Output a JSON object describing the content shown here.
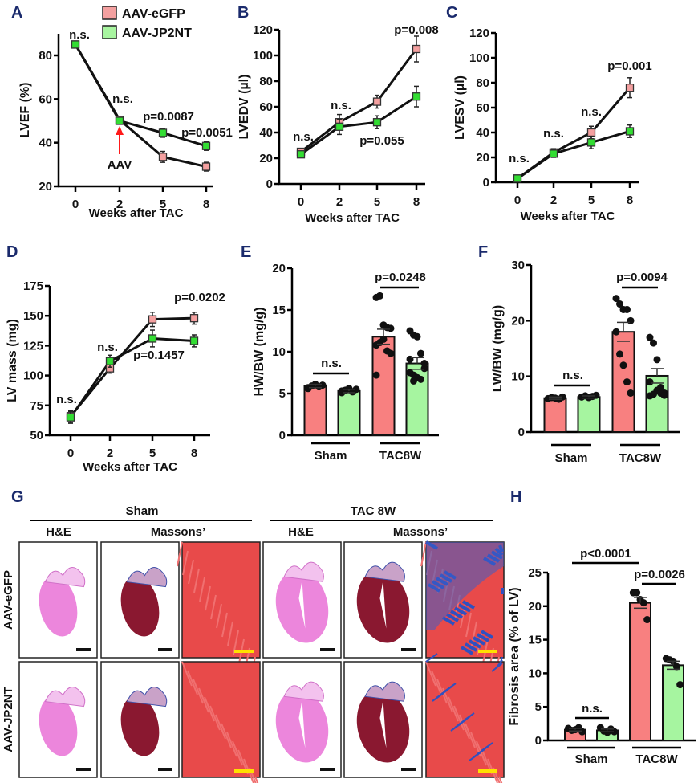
{
  "legend": {
    "items": [
      {
        "label": "AAV-eGFP",
        "color": "#f4a0a0"
      },
      {
        "label": "AAV-JP2NT",
        "color": "#a8f5a0"
      }
    ]
  },
  "colors": {
    "egfp_marker": "#f4a0a0",
    "jp2nt_marker": "#33dd33",
    "egfp_bar": "#f88080",
    "jp2nt_bar": "#a6f5a0",
    "panel_letter": "#1a2a6c",
    "arrow": "#ff1a1a"
  },
  "panel_letters": [
    "A",
    "B",
    "C",
    "D",
    "E",
    "F",
    "G",
    "H"
  ],
  "chart_data": [
    {
      "id": "A",
      "type": "line",
      "ylabel": "LVEF (%)",
      "xlabel": "Weeks after TAC",
      "categories": [
        "0",
        "2",
        "5",
        "8"
      ],
      "ylim": [
        20,
        90
      ],
      "yticks": [
        20,
        40,
        60,
        80
      ],
      "series": [
        {
          "name": "AAV-eGFP",
          "values": [
            85,
            50.5,
            33.5,
            29
          ],
          "sem": [
            1,
            1.5,
            2.5,
            2
          ]
        },
        {
          "name": "AAV-JP2NT",
          "values": [
            85,
            50,
            44.5,
            38.5
          ],
          "sem": [
            1,
            1.5,
            2,
            2
          ]
        }
      ],
      "annotations": [
        "n.s.",
        "n.s.",
        "p=0.0087",
        "p=0.0051"
      ],
      "arrow_label": "AAV"
    },
    {
      "id": "B",
      "type": "line",
      "ylabel": "LVEDV (µl)",
      "xlabel": "Weeks after TAC",
      "categories": [
        "0",
        "2",
        "5",
        "8"
      ],
      "ylim": [
        0,
        120
      ],
      "yticks": [
        0,
        20,
        40,
        60,
        80,
        100,
        120
      ],
      "series": [
        {
          "name": "AAV-eGFP",
          "values": [
            25,
            48,
            64,
            105
          ],
          "sem": [
            2,
            6,
            5,
            10
          ]
        },
        {
          "name": "AAV-JP2NT",
          "values": [
            23,
            44.5,
            48,
            68
          ],
          "sem": [
            2,
            6,
            5,
            8
          ]
        }
      ],
      "annotations": [
        "n.s.",
        "n.s.",
        "p=0.055",
        "p=0.008"
      ]
    },
    {
      "id": "C",
      "type": "line",
      "ylabel": "LVESV (µl)",
      "xlabel": "Weeks after TAC",
      "categories": [
        "0",
        "2",
        "5",
        "8"
      ],
      "ylim": [
        0,
        120
      ],
      "yticks": [
        0,
        20,
        40,
        60,
        80,
        100,
        120
      ],
      "series": [
        {
          "name": "AAV-eGFP",
          "values": [
            3,
            24,
            40,
            76
          ],
          "sem": [
            1,
            3,
            5,
            8
          ]
        },
        {
          "name": "AAV-JP2NT",
          "values": [
            3,
            23,
            32,
            41
          ],
          "sem": [
            1,
            3,
            5,
            5
          ]
        }
      ],
      "annotations": [
        "n.s.",
        "n.s.",
        "n.s.",
        "p=0.001"
      ]
    },
    {
      "id": "D",
      "type": "line",
      "ylabel": "LV mass (mg)",
      "xlabel": "Weeks after TAC",
      "categories": [
        "0",
        "2",
        "5",
        "8"
      ],
      "ylim": [
        50,
        175
      ],
      "yticks": [
        50,
        75,
        100,
        125,
        150,
        175
      ],
      "series": [
        {
          "name": "AAV-eGFP",
          "values": [
            66,
            106,
            147,
            148
          ],
          "sem": [
            5,
            4,
            6,
            5
          ]
        },
        {
          "name": "AAV-JP2NT",
          "values": [
            65,
            112,
            131,
            129
          ],
          "sem": [
            5,
            5,
            7,
            5
          ]
        }
      ],
      "annotations": [
        "n.s.",
        "n.s.",
        "p=0.1457",
        "p=0.0202"
      ]
    },
    {
      "id": "E",
      "type": "bar",
      "ylabel": "HW/BW (mg/g)",
      "groups": [
        "Sham",
        "TAC8W"
      ],
      "ylim": [
        0,
        20
      ],
      "yticks": [
        0,
        5,
        10,
        15,
        20
      ],
      "bars": [
        {
          "group": "Sham",
          "series": "AAV-eGFP",
          "mean": 5.9,
          "sem": 0.2,
          "points": [
            5.6,
            5.9,
            6.1,
            5.8,
            6.0,
            5.7
          ]
        },
        {
          "group": "Sham",
          "series": "AAV-JP2NT",
          "mean": 5.3,
          "sem": 0.2,
          "points": [
            5.1,
            5.4,
            5.6,
            5.2,
            5.5,
            5.3
          ]
        },
        {
          "group": "TAC8W",
          "series": "AAV-eGFP",
          "mean": 11.8,
          "sem": 0.9,
          "points": [
            16.5,
            16.7,
            13.2,
            12.9,
            12.8,
            10.8,
            11.1,
            11.5,
            10.1,
            9.8,
            7.2
          ]
        },
        {
          "group": "TAC8W",
          "series": "AAV-JP2NT",
          "mean": 8.6,
          "sem": 0.7,
          "points": [
            12.5,
            12.0,
            11.8,
            9.8,
            8.0,
            7.5,
            7.2,
            6.9,
            6.7,
            8.6,
            9.1,
            6.5
          ]
        }
      ],
      "annotations": [
        "n.s.",
        "p=0.0248"
      ]
    },
    {
      "id": "F",
      "type": "bar",
      "ylabel": "LW/BW (mg/g)",
      "groups": [
        "Sham",
        "TAC8W"
      ],
      "ylim": [
        0,
        30
      ],
      "yticks": [
        0,
        10,
        20,
        30
      ],
      "bars": [
        {
          "group": "Sham",
          "series": "AAV-eGFP",
          "mean": 6.1,
          "sem": 0.2,
          "points": [
            6.0,
            6.2,
            6.1,
            5.9,
            6.3
          ]
        },
        {
          "group": "Sham",
          "series": "AAV-JP2NT",
          "mean": 6.3,
          "sem": 0.2,
          "points": [
            6.3,
            6.5,
            6.2,
            6.4,
            6.6
          ]
        },
        {
          "group": "TAC8W",
          "series": "AAV-eGFP",
          "mean": 18.0,
          "sem": 1.7,
          "points": [
            24,
            23,
            22,
            22,
            20,
            18,
            14,
            12,
            9,
            7
          ]
        },
        {
          "group": "TAC8W",
          "series": "AAV-JP2NT",
          "mean": 10.1,
          "sem": 1.3,
          "points": [
            17,
            16,
            13,
            8,
            7,
            6.5,
            6.8,
            7.5,
            7,
            6.6,
            9
          ]
        }
      ],
      "annotations": [
        "n.s.",
        "p=0.0094"
      ]
    },
    {
      "id": "H",
      "type": "bar",
      "ylabel": "Fibrosis area (% of LV)",
      "groups": [
        "Sham",
        "TAC8W"
      ],
      "ylim": [
        0,
        25
      ],
      "yticks": [
        0,
        5,
        10,
        15,
        20,
        25
      ],
      "bars": [
        {
          "group": "Sham",
          "series": "AAV-eGFP",
          "mean": 1.6,
          "sem": 0.2,
          "points": [
            1.8,
            1.5,
            1.6,
            1.9,
            1.3
          ]
        },
        {
          "group": "Sham",
          "series": "AAV-JP2NT",
          "mean": 1.5,
          "sem": 0.2,
          "points": [
            1.9,
            1.4,
            1.2,
            1.7,
            1.3
          ]
        },
        {
          "group": "TAC8W",
          "series": "AAV-eGFP",
          "mean": 20.5,
          "sem": 0.8,
          "points": [
            22,
            22,
            21,
            20.5,
            18
          ]
        },
        {
          "group": "TAC8W",
          "series": "AAV-JP2NT",
          "mean": 11.2,
          "sem": 0.6,
          "points": [
            12.2,
            12,
            11.8,
            11,
            8.3
          ]
        }
      ],
      "annotations": [
        "n.s.",
        "p<0.0001",
        "p=0.0026"
      ]
    }
  ],
  "histology": {
    "conditions": [
      "Sham",
      "TAC 8W"
    ],
    "stains": [
      "H&E",
      "Massons’",
      "H&E",
      "Massons’"
    ],
    "rows": [
      "AAV-eGFP",
      "AAV-JP2NT"
    ]
  }
}
